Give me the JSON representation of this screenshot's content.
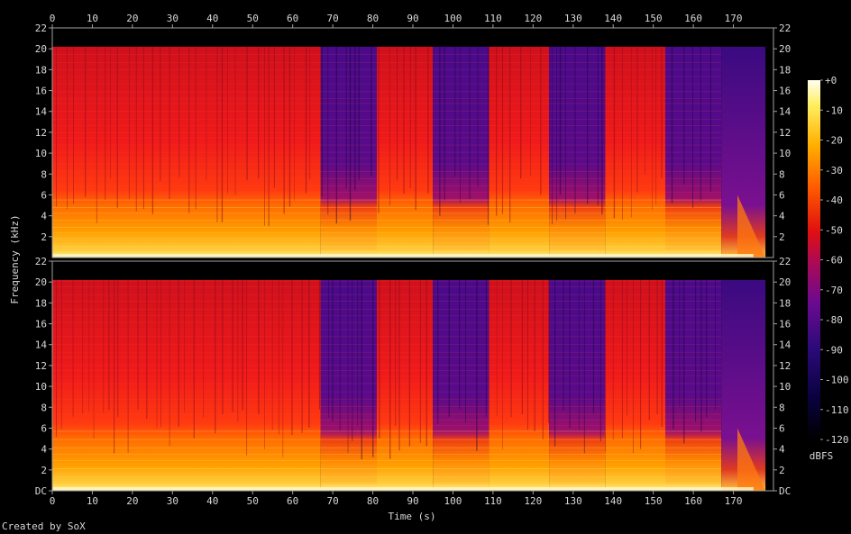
{
  "chart_data": {
    "type": "heatmap",
    "xlabel": "Time (s)",
    "ylabel": "Frequency (kHz)",
    "x_ticks": [
      0,
      10,
      20,
      30,
      40,
      50,
      60,
      70,
      80,
      90,
      100,
      110,
      120,
      130,
      140,
      150,
      160,
      170
    ],
    "xlim": [
      0,
      180
    ],
    "ylim_khz": [
      0,
      22
    ],
    "y_ticks": [
      "DC",
      "2",
      "4",
      "6",
      "8",
      "10",
      "12",
      "14",
      "16",
      "18",
      "20",
      "22"
    ],
    "top_channel_y_ticks": [
      "2",
      "4",
      "6",
      "8",
      "10",
      "12",
      "14",
      "16",
      "18",
      "20",
      "22"
    ],
    "channels": 2,
    "colorbar": {
      "label": "dBFS",
      "ticks": [
        "+0",
        "-10",
        "-20",
        "-30",
        "-40",
        "-50",
        "-60",
        "-70",
        "-80",
        "-90",
        "-100",
        "-110",
        "-120"
      ],
      "range_db": [
        -120,
        0
      ]
    },
    "segments": [
      {
        "start": 0,
        "end": 67,
        "level": "loud"
      },
      {
        "start": 67,
        "end": 81,
        "level": "cutoff"
      },
      {
        "start": 81,
        "end": 95,
        "level": "loud"
      },
      {
        "start": 95,
        "end": 109,
        "level": "cutoff"
      },
      {
        "start": 109,
        "end": 124,
        "level": "loud"
      },
      {
        "start": 124,
        "end": 138,
        "level": "cutoff"
      },
      {
        "start": 138,
        "end": 153,
        "level": "loud"
      },
      {
        "start": 153,
        "end": 167,
        "level": "cutoff"
      },
      {
        "start": 167,
        "end": 178,
        "level": "fade"
      }
    ],
    "bandlimit_khz": 20.2,
    "duration_s": 178
  },
  "footer": "Created by SoX",
  "colors": {
    "background": "#000000",
    "frame": "#a0a0a0",
    "text": "#d8d8d8"
  }
}
